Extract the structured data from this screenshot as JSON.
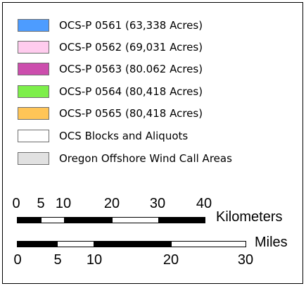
{
  "legend": {
    "items": [
      {
        "label": "OCS-P 0561 (63,338 Acres)",
        "color": "#4d9cff",
        "icon": "blue-swatch-icon"
      },
      {
        "label": "OCS-P 0562 (69,031 Acres)",
        "color": "#ffccee",
        "icon": "pink-swatch-icon"
      },
      {
        "label": "OCS-P 0563 (80.062 Acres)",
        "color": "#cc4ead",
        "icon": "magenta-swatch-icon"
      },
      {
        "label": "OCS-P 0564 (80,418 Acres)",
        "color": "#7def4a",
        "icon": "green-swatch-icon"
      },
      {
        "label": "OCS-P 0565 (80,418 Acres)",
        "color": "#ffc557",
        "icon": "orange-swatch-icon"
      },
      {
        "label": "OCS Blocks and Aliquots",
        "color": "#ffffff",
        "icon": "white-swatch-icon"
      },
      {
        "label": "Oregon Offshore Wind Call Areas",
        "color": "#e1e1e1",
        "icon": "gray-swatch-icon"
      }
    ]
  },
  "scale_km": {
    "unit_label": "Kilometers",
    "ticks": [
      "0",
      "5",
      "10",
      "20",
      "30",
      "40"
    ]
  },
  "scale_mi": {
    "unit_label": "Miles",
    "ticks": [
      "0",
      "5",
      "10",
      "20",
      "30"
    ]
  }
}
